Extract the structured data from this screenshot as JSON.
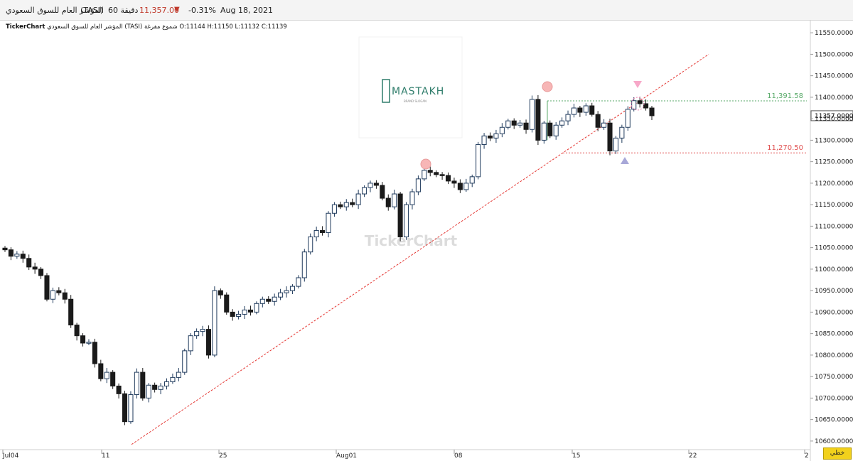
{
  "header": {
    "symbol_name": "المؤشر العام للسوق السعودي",
    "symbol_code": "(TASI)",
    "interval": "60 دقيقة",
    "price": "11,357.00",
    "change_pct": "-0.31%",
    "date": "Aug 18, 2021",
    "down_color": "#c0392b"
  },
  "info_line": {
    "app": "TickerChart",
    "symbol": "المؤشر العام للسوق السعودي (TASI)",
    "chart_type": "شموع مفرغة",
    "ohlc": "O:11144 H:11150 L:11132 C:11139"
  },
  "watermark": {
    "logo_text": "MASTAKH",
    "logo_sub": "BRAND SLOGAN",
    "center_text": "TickerChart"
  },
  "levels": {
    "resistance_label": "11,391.58",
    "support_label": "11,270.50",
    "last_price_label": "11357.0000"
  },
  "bottom_button": "خطي",
  "chart_data": {
    "type": "candlestick",
    "y_range": [
      10580,
      11580
    ],
    "y_ticks": [
      "11550.0000",
      "11500.0000",
      "11450.0000",
      "11400.0000",
      "11350.0000",
      "11300.0000",
      "11250.0000",
      "11200.0000",
      "11150.0000",
      "11100.0000",
      "11050.0000",
      "11000.0000",
      "10950.0000",
      "10900.0000",
      "10850.0000",
      "10800.0000",
      "10750.0000",
      "10700.0000",
      "10650.0000",
      "10600.0000"
    ],
    "x_ticks": [
      "Jul04",
      "11",
      "25",
      "Aug01",
      "08",
      "15",
      "22",
      "2"
    ],
    "resistance": 11391.58,
    "support": 11270.5,
    "last_price": 11357,
    "trendline": {
      "start_value": 10592,
      "end_value": 11500
    },
    "colors": {
      "up_edge": "#1f3a5c",
      "down": "#1a1a1a",
      "resistance": "#5aaa6a",
      "support": "#e05050",
      "trend": "#e53935"
    },
    "candle_closes": [
      11045,
      11030,
      11035,
      11025,
      11005,
      11000,
      10985,
      10930,
      10950,
      10945,
      10930,
      10870,
      10845,
      10828,
      10830,
      10780,
      10745,
      10760,
      10728,
      10710,
      10645,
      10708,
      10760,
      10700,
      10730,
      10720,
      10728,
      10738,
      10748,
      10760,
      10810,
      10845,
      10855,
      10860,
      10800,
      10950,
      10940,
      10900,
      10890,
      10895,
      10905,
      10900,
      10920,
      10930,
      10925,
      10935,
      10945,
      10950,
      10960,
      10980,
      11040,
      11075,
      11090,
      11085,
      11130,
      11150,
      11145,
      11155,
      11150,
      11175,
      11190,
      11200,
      11195,
      11165,
      11145,
      11175,
      11075,
      11150,
      11180,
      11210,
      11230,
      11225,
      11220,
      11218,
      11205,
      11200,
      11185,
      11200,
      11215,
      11290,
      11310,
      11305,
      11315,
      11330,
      11345,
      11335,
      11340,
      11325,
      11395,
      11300,
      11340,
      11310,
      11335,
      11345,
      11360,
      11375,
      11365,
      11380,
      11360,
      11330,
      11340,
      11275,
      11305,
      11330,
      11372,
      11392,
      11385,
      11375,
      11357
    ]
  }
}
